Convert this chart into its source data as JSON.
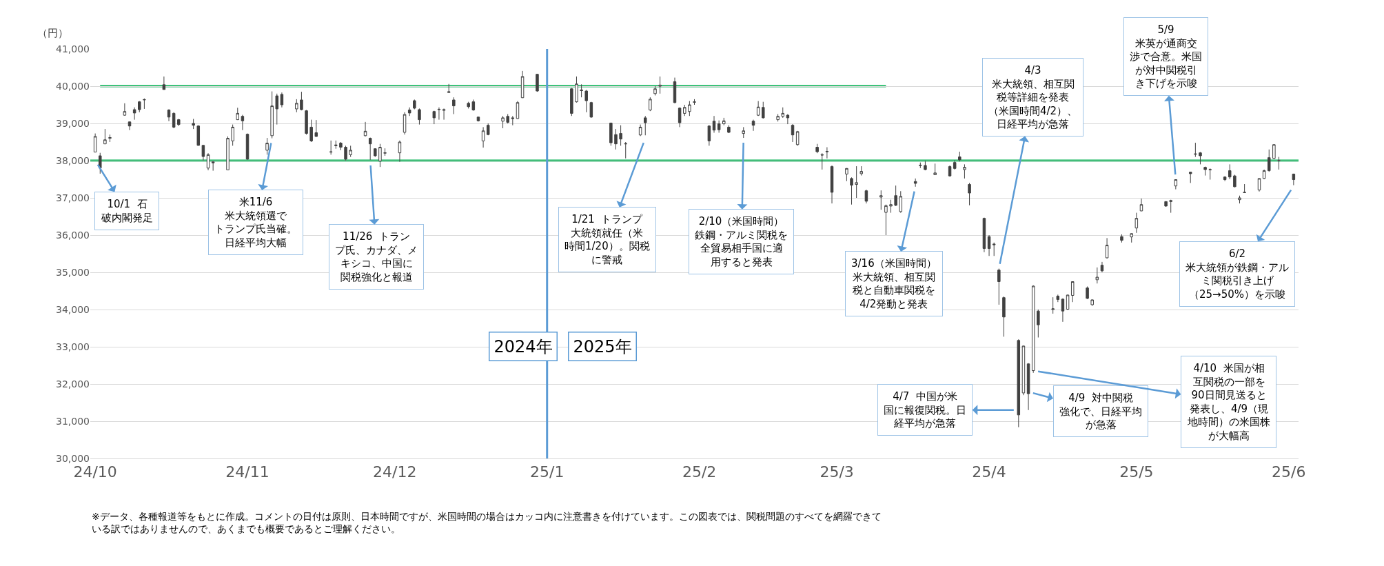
{
  "chart_data": {
    "type": "candlestick",
    "color": "#404040",
    "ylabel": "（円）",
    "x": [
      "2024-10-01",
      "2024-10-02",
      "2024-10-03",
      "2024-10-04",
      "2024-10-07",
      "2024-10-08",
      "2024-10-09",
      "2024-10-10",
      "2024-10-11",
      "2024-10-15",
      "2024-10-16",
      "2024-10-17",
      "2024-10-18",
      "2024-10-21",
      "2024-10-22",
      "2024-10-23",
      "2024-10-24",
      "2024-10-25",
      "2024-10-28",
      "2024-10-29",
      "2024-10-30",
      "2024-10-31",
      "2024-11-01",
      "2024-11-05",
      "2024-11-06",
      "2024-11-07",
      "2024-11-08",
      "2024-11-11",
      "2024-11-12",
      "2024-11-13",
      "2024-11-14",
      "2024-11-15",
      "2024-11-18",
      "2024-11-19",
      "2024-11-20",
      "2024-11-21",
      "2024-11-22",
      "2024-11-25",
      "2024-11-26",
      "2024-11-27",
      "2024-11-28",
      "2024-11-29",
      "2024-12-02",
      "2024-12-03",
      "2024-12-04",
      "2024-12-05",
      "2024-12-06",
      "2024-12-09",
      "2024-12-10",
      "2024-12-11",
      "2024-12-12",
      "2024-12-13",
      "2024-12-16",
      "2024-12-17",
      "2024-12-18",
      "2024-12-19",
      "2024-12-20",
      "2024-12-23",
      "2024-12-24",
      "2024-12-25",
      "2024-12-26",
      "2024-12-27",
      "2024-12-30",
      "2025-01-06",
      "2025-01-07",
      "2025-01-08",
      "2025-01-09",
      "2025-01-10",
      "2025-01-14",
      "2025-01-15",
      "2025-01-16",
      "2025-01-17",
      "2025-01-20",
      "2025-01-21",
      "2025-01-22",
      "2025-01-23",
      "2025-01-24",
      "2025-01-27",
      "2025-01-28",
      "2025-01-29",
      "2025-01-30",
      "2025-01-31",
      "2025-02-03",
      "2025-02-04",
      "2025-02-05",
      "2025-02-06",
      "2025-02-07",
      "2025-02-10",
      "2025-02-12",
      "2025-02-13",
      "2025-02-14",
      "2025-02-17",
      "2025-02-18",
      "2025-02-19",
      "2025-02-20",
      "2025-02-21",
      "2025-02-25",
      "2025-02-26",
      "2025-02-27",
      "2025-02-28",
      "2025-03-03",
      "2025-03-04",
      "2025-03-05",
      "2025-03-06",
      "2025-03-07",
      "2025-03-10",
      "2025-03-11",
      "2025-03-12",
      "2025-03-13",
      "2025-03-14",
      "2025-03-17",
      "2025-03-18",
      "2025-03-19",
      "2025-03-21",
      "2025-03-24",
      "2025-03-25",
      "2025-03-26",
      "2025-03-27",
      "2025-03-28",
      "2025-03-31",
      "2025-04-01",
      "2025-04-02",
      "2025-04-03",
      "2025-04-04",
      "2025-04-07",
      "2025-04-08",
      "2025-04-09",
      "2025-04-10",
      "2025-04-11",
      "2025-04-14",
      "2025-04-15",
      "2025-04-16",
      "2025-04-17",
      "2025-04-18",
      "2025-04-21",
      "2025-04-22",
      "2025-04-23",
      "2025-04-24",
      "2025-04-25",
      "2025-04-28",
      "2025-04-30",
      "2025-05-01",
      "2025-05-02",
      "2025-05-07",
      "2025-05-08",
      "2025-05-09",
      "2025-05-12",
      "2025-05-13",
      "2025-05-14",
      "2025-05-15",
      "2025-05-16",
      "2025-05-19",
      "2025-05-20",
      "2025-05-21",
      "2025-05-22",
      "2025-05-23",
      "2025-05-26",
      "2025-05-27",
      "2025-05-28",
      "2025-05-29",
      "2025-05-30",
      "2025-06-02"
    ],
    "ohlc": [
      [
        38230,
        38730,
        38230,
        38650
      ],
      [
        38130,
        38210,
        37650,
        37800
      ],
      [
        38450,
        38850,
        38450,
        38560
      ],
      [
        38600,
        38700,
        38500,
        38620
      ],
      [
        39220,
        39540,
        39210,
        39320
      ],
      [
        39040,
        39050,
        38820,
        38930
      ],
      [
        39370,
        39430,
        39100,
        39280
      ],
      [
        39580,
        39600,
        39300,
        39370
      ],
      [
        39630,
        39670,
        39390,
        39640
      ],
      [
        40040,
        40260,
        39910,
        39910
      ],
      [
        39360,
        39380,
        39060,
        39170
      ],
      [
        39270,
        39300,
        38870,
        38900
      ],
      [
        39100,
        39120,
        38930,
        38970
      ],
      [
        39000,
        39120,
        38850,
        38950
      ],
      [
        38930,
        38950,
        38400,
        38410
      ],
      [
        38410,
        38420,
        38000,
        38110
      ],
      [
        37800,
        38200,
        37740,
        38160
      ],
      [
        37970,
        37980,
        37730,
        37940
      ],
      [
        37750,
        38650,
        37750,
        38600
      ],
      [
        38530,
        38970,
        38400,
        38900
      ],
      [
        39100,
        39420,
        39090,
        39270
      ],
      [
        39190,
        39230,
        38820,
        39070
      ],
      [
        38710,
        38730,
        38020,
        38040
      ],
      [
        38280,
        38610,
        38160,
        38470
      ],
      [
        38670,
        39860,
        38600,
        39470
      ],
      [
        39740,
        39800,
        38970,
        39390
      ],
      [
        39780,
        39830,
        39430,
        39500
      ],
      [
        39390,
        39650,
        39300,
        39540
      ],
      [
        39630,
        39850,
        39350,
        39370
      ],
      [
        39340,
        39360,
        38700,
        38730
      ],
      [
        38900,
        39100,
        38500,
        38530
      ],
      [
        38750,
        39090,
        38640,
        38650
      ],
      [
        38240,
        38540,
        38160,
        38230
      ],
      [
        38400,
        38540,
        38320,
        38420
      ],
      [
        38470,
        38500,
        38280,
        38360
      ],
      [
        38360,
        38400,
        38000,
        38040
      ],
      [
        38160,
        38400,
        38100,
        38280
      ],
      [
        38670,
        39040,
        38650,
        38790
      ],
      [
        38600,
        38620,
        38020,
        38450
      ],
      [
        38320,
        38330,
        38100,
        38130
      ],
      [
        37990,
        38450,
        37830,
        38360
      ],
      [
        38200,
        38330,
        38130,
        38210
      ],
      [
        38210,
        38540,
        37970,
        38500
      ],
      [
        38760,
        39300,
        38700,
        39240
      ],
      [
        39360,
        39430,
        39200,
        39280
      ],
      [
        39610,
        39640,
        39380,
        39410
      ],
      [
        39370,
        39400,
        38970,
        39100
      ],
      [
        39320,
        39340,
        38980,
        39150
      ],
      [
        39370,
        39430,
        39100,
        39380
      ],
      [
        39350,
        39400,
        39100,
        39370
      ],
      [
        39830,
        40060,
        39820,
        39850
      ],
      [
        39630,
        39700,
        39250,
        39470
      ],
      [
        39540,
        39580,
        39400,
        39450
      ],
      [
        39580,
        39640,
        39340,
        39360
      ],
      [
        39170,
        39180,
        39050,
        39070
      ],
      [
        38530,
        38900,
        38350,
        38800
      ],
      [
        38950,
        39000,
        38680,
        38700
      ],
      [
        39060,
        39200,
        38870,
        39150
      ],
      [
        39190,
        39250,
        39000,
        39030
      ],
      [
        39150,
        39200,
        38950,
        39130
      ],
      [
        39130,
        39600,
        39120,
        39560
      ],
      [
        39690,
        40410,
        39680,
        40260
      ],
      [
        40320,
        40330,
        39850,
        39870
      ],
      [
        39930,
        39950,
        39200,
        39270
      ],
      [
        39580,
        40260,
        39560,
        40060
      ],
      [
        39900,
        40050,
        39700,
        39880
      ],
      [
        39870,
        39900,
        39300,
        39610
      ],
      [
        39560,
        39580,
        39150,
        39170
      ],
      [
        39010,
        39020,
        38400,
        38480
      ],
      [
        38700,
        38850,
        38300,
        38450
      ],
      [
        38730,
        38950,
        38400,
        38580
      ],
      [
        38460,
        38500,
        38060,
        38450
      ],
      [
        38690,
        38970,
        38660,
        38900
      ],
      [
        39150,
        39200,
        38680,
        39020
      ],
      [
        39360,
        39700,
        39330,
        39650
      ],
      [
        39800,
        40000,
        39750,
        39930
      ],
      [
        40000,
        40260,
        39800,
        40030
      ],
      [
        40120,
        40230,
        39540,
        39560
      ],
      [
        39410,
        39430,
        38900,
        39020
      ],
      [
        39270,
        39500,
        39200,
        39430
      ],
      [
        39320,
        39600,
        39200,
        39500
      ],
      [
        39580,
        39650,
        39500,
        39570
      ],
      [
        38930,
        38950,
        38400,
        38530
      ],
      [
        39060,
        39200,
        38750,
        38820
      ],
      [
        38990,
        39080,
        38750,
        38830
      ],
      [
        38990,
        39150,
        38950,
        39070
      ],
      [
        38900,
        38950,
        38740,
        38760
      ],
      [
        38730,
        38900,
        38610,
        38800
      ],
      [
        39060,
        39100,
        38800,
        38950
      ],
      [
        39220,
        39600,
        39200,
        39440
      ],
      [
        39430,
        39580,
        39130,
        39150
      ],
      [
        39100,
        39250,
        39050,
        39190
      ],
      [
        39190,
        39430,
        39150,
        39270
      ],
      [
        39220,
        39250,
        38980,
        39150
      ],
      [
        38950,
        38980,
        38500,
        38690
      ],
      [
        38430,
        38800,
        38400,
        38780
      ],
      [
        38360,
        38450,
        38200,
        38240
      ],
      [
        38160,
        38200,
        37760,
        38150
      ],
      [
        38250,
        38360,
        38060,
        38240
      ],
      [
        37840,
        37870,
        36850,
        37150
      ],
      [
        37640,
        37800,
        37450,
        37790
      ],
      [
        37520,
        37550,
        36820,
        37340
      ],
      [
        37360,
        37850,
        37000,
        37410
      ],
      [
        37650,
        37850,
        37600,
        37710
      ],
      [
        37190,
        37220,
        36850,
        36910
      ],
      [
        37020,
        37200,
        36680,
        37060
      ],
      [
        36610,
        36820,
        36000,
        36790
      ],
      [
        36780,
        36950,
        36600,
        36820
      ],
      [
        37060,
        37330,
        36780,
        36800
      ],
      [
        36630,
        37180,
        36600,
        37040
      ],
      [
        37440,
        37520,
        37300,
        37390
      ],
      [
        37880,
        37950,
        37800,
        37870
      ],
      [
        37870,
        37990,
        37740,
        37760
      ],
      [
        37620,
        37920,
        37620,
        37670
      ],
      [
        37840,
        37870,
        37570,
        37590
      ],
      [
        37950,
        38000,
        37760,
        37790
      ],
      [
        38100,
        38240,
        37980,
        38020
      ],
      [
        37760,
        37900,
        37520,
        37820
      ],
      [
        37360,
        37400,
        36800,
        37130
      ],
      [
        36450,
        36470,
        35540,
        35640
      ],
      [
        35960,
        36000,
        35440,
        35640
      ],
      [
        35760,
        35800,
        35440,
        35740
      ],
      [
        35060,
        35100,
        34130,
        34750
      ],
      [
        34320,
        34350,
        33270,
        33800
      ],
      [
        33170,
        33200,
        30840,
        31170
      ],
      [
        31760,
        33030,
        31700,
        33020
      ],
      [
        32540,
        32560,
        31300,
        31740
      ],
      [
        32360,
        34650,
        32300,
        34630
      ],
      [
        33960,
        34000,
        33250,
        33590
      ],
      [
        34000,
        34330,
        33890,
        34020
      ],
      [
        34360,
        34400,
        34200,
        34270
      ],
      [
        34280,
        34300,
        33670,
        33960
      ],
      [
        34010,
        34400,
        33990,
        34390
      ],
      [
        34380,
        34750,
        34200,
        34750
      ],
      [
        34580,
        34620,
        34280,
        34300
      ],
      [
        34130,
        34270,
        34100,
        34260
      ],
      [
        34800,
        35130,
        34700,
        34870
      ],
      [
        35190,
        35280,
        35000,
        35040
      ],
      [
        35390,
        35920,
        35370,
        35730
      ],
      [
        35960,
        36020,
        35800,
        35860
      ],
      [
        35950,
        36050,
        35800,
        36040
      ],
      [
        36190,
        36600,
        36060,
        36450
      ],
      [
        36650,
        36980,
        36640,
        36820
      ],
      [
        36900,
        36910,
        36760,
        36780
      ],
      [
        36900,
        36950,
        36600,
        36930
      ],
      [
        37320,
        37500,
        37230,
        37490
      ],
      [
        37690,
        37700,
        37400,
        37650
      ],
      [
        38170,
        38480,
        38100,
        38180
      ],
      [
        38210,
        38230,
        37900,
        38130
      ],
      [
        37820,
        37840,
        37600,
        37760
      ],
      [
        37750,
        37790,
        37490,
        37760
      ],
      [
        37560,
        37580,
        37450,
        37490
      ],
      [
        37730,
        37900,
        37500,
        37560
      ],
      [
        37590,
        37620,
        37280,
        37300
      ],
      [
        36950,
        37060,
        36850,
        37000
      ],
      [
        37140,
        37370,
        37130,
        37150
      ],
      [
        37210,
        37530,
        37170,
        37520
      ],
      [
        37520,
        37760,
        37500,
        37730
      ],
      [
        38080,
        38300,
        37700,
        37730
      ],
      [
        38060,
        38440,
        38040,
        38430
      ],
      [
        38000,
        38100,
        37760,
        38010
      ],
      [
        37640,
        37650,
        37340,
        37490
      ]
    ],
    "series": [
      {
        "type": "line",
        "color": "#00b050",
        "x": [
          "2024-10-02",
          "2025-03-11"
        ],
        "values": [
          40000,
          40000
        ]
      },
      {
        "type": "line",
        "color": "#00b050",
        "x": [
          "2024-09-30",
          "2025-06-03"
        ],
        "values": [
          38000,
          38000
        ]
      }
    ],
    "ref_lines": [
      {
        "axis": "x",
        "value": "2025-01-01",
        "color": "#5b9bd5"
      }
    ],
    "xlim": [
      "2024-09-30",
      "2025-06-03"
    ],
    "xticks": [
      {
        "value": "2024-10-01",
        "label": "24/10"
      },
      {
        "value": "2024-11-01",
        "label": "24/11"
      },
      {
        "value": "2024-12-01",
        "label": "24/12"
      },
      {
        "value": "2025-01-01",
        "label": "25/1"
      },
      {
        "value": "2025-02-01",
        "label": "25/2"
      },
      {
        "value": "2025-03-01",
        "label": "25/3"
      },
      {
        "value": "2025-04-01",
        "label": "25/4"
      },
      {
        "value": "2025-05-01",
        "label": "25/5"
      },
      {
        "value": "2025-06-01",
        "label": "25/6"
      }
    ],
    "ylim": [
      30000,
      41000
    ],
    "yticks": [
      {
        "value": 30000,
        "label": "30,000"
      },
      {
        "value": 31000,
        "label": "31,000"
      },
      {
        "value": 32000,
        "label": "32,000"
      },
      {
        "value": 33000,
        "label": "33,000"
      },
      {
        "value": 34000,
        "label": "34,000"
      },
      {
        "value": 35000,
        "label": "35,000"
      },
      {
        "value": 36000,
        "label": "36,000"
      },
      {
        "value": 37000,
        "label": "37,000"
      },
      {
        "value": 38000,
        "label": "38,000"
      },
      {
        "value": 39000,
        "label": "39,000"
      },
      {
        "value": 40000,
        "label": "40,000"
      },
      {
        "value": 41000,
        "label": "41,000"
      }
    ],
    "grid": "y",
    "annotations": [
      {
        "text": "10/1  石破内閣発足",
        "x": "2024-10-01",
        "y": 38000
      },
      {
        "text": "米11/6米大統領選でトランプ氏当確。日経平均大幅",
        "x": "2024-11-06",
        "y": 38600
      },
      {
        "text": "11/26  トランプ氏、カナダ、メキシコ、中国に関税強化と報道",
        "x": "2024-11-26",
        "y": 38000
      },
      {
        "text": "1/21  トランプ大統領就任（米時間1/20）。関税に警戒",
        "x": "2025-01-21",
        "y": 38600
      },
      {
        "text": "2/10（米国時間）鉄鋼・アルミ関税を全貿易相手国に適用すると発表",
        "x": "2025-02-10",
        "y": 38610
      },
      {
        "text": "3/16（米国時間）米大統領、相互関税と自動車関税を4/2発動と発表",
        "x": "2025-03-17",
        "y": 37300
      },
      {
        "text": "4/3米大統領、相互関税等詳細を発表（米国時間4/2）、日経平均が急落",
        "x": "2025-04-03",
        "y": 35100
      },
      {
        "text": "4/7  中国が米国に報復関税。日経平均が急落",
        "x": "2025-04-07",
        "y": 31300
      },
      {
        "text": "4/9  対中関税強化で、日経平均が急落",
        "x": "2025-04-09",
        "y": 31790
      },
      {
        "text": "4/10  米国が相互関税の一部を90日間見送ると発表し、4/9（現地時間）の米国株が大幅高",
        "x": "2025-04-10",
        "y": 32360
      },
      {
        "text": "5/9米英が通商交渉で合意。米国が対中関税引き下げを示唆",
        "x": "2025-05-09",
        "y": 37500
      },
      {
        "text": "6/2米大統領が鉄鋼・アルミ関税引き上げ（25→50%）を示唆",
        "x": "2025-06-02",
        "y": 37320
      },
      "2024年",
      "2025年",
      "※データ、各種報道等をもとに作成。コメントの日付は原則、日本時間ですが、米国時間の場合はカッコ内に注意書きを付けています。この図表では、関税問題のすべてを網羅できている訳ではありませんので、あくまでも概要であるとご理解ください。"
    ]
  }
}
